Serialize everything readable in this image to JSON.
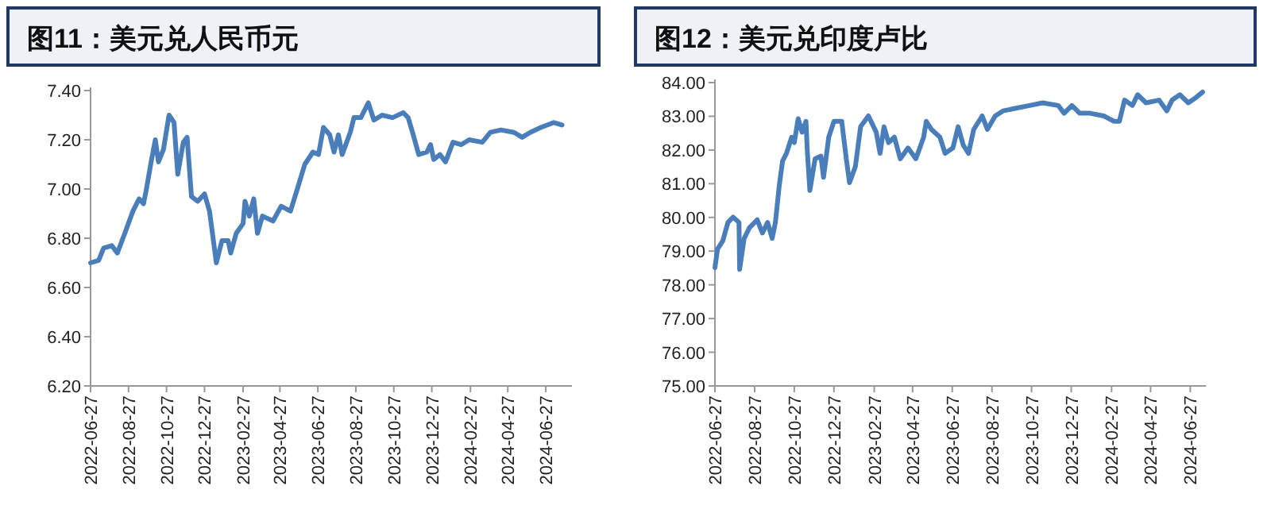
{
  "chart_data": [
    {
      "type": "line",
      "title": "图11：美元兑人民币元",
      "x": [
        "2022-06-27",
        "2022-07-10",
        "2022-07-18",
        "2022-07-31",
        "2022-08-09",
        "2022-08-21",
        "2022-09-03",
        "2022-09-13",
        "2022-09-20",
        "2022-09-24",
        "2022-10-03",
        "2022-10-09",
        "2022-10-14",
        "2022-10-22",
        "2022-10-31",
        "2022-11-08",
        "2022-11-14",
        "2022-11-23",
        "2022-11-29",
        "2022-12-06",
        "2022-12-16",
        "2022-12-27",
        "2023-01-04",
        "2023-01-15",
        "2023-01-24",
        "2023-02-03",
        "2023-02-07",
        "2023-02-16",
        "2023-02-27",
        "2023-03-02",
        "2023-03-09",
        "2023-03-16",
        "2023-03-22",
        "2023-03-30",
        "2023-04-16",
        "2023-04-29",
        "2023-05-14",
        "2023-05-25",
        "2023-06-06",
        "2023-06-19",
        "2023-06-28",
        "2023-07-06",
        "2023-07-16",
        "2023-07-23",
        "2023-07-30",
        "2023-08-05",
        "2023-08-18",
        "2023-08-24",
        "2023-09-04",
        "2023-09-16",
        "2023-09-25",
        "2023-10-08",
        "2023-10-25",
        "2023-11-11",
        "2023-11-19",
        "2023-11-26",
        "2023-12-06",
        "2023-12-19",
        "2023-12-25",
        "2023-12-30",
        "2024-01-09",
        "2024-01-18",
        "2024-01-30",
        "2024-02-12",
        "2024-02-25",
        "2024-03-17",
        "2024-03-30",
        "2024-04-16",
        "2024-05-07",
        "2024-05-20",
        "2024-06-02",
        "2024-06-19",
        "2024-07-10",
        "2024-07-23"
      ],
      "series": [
        {
          "color": "#4a7ebb",
          "values": [
            6.7,
            6.71,
            6.76,
            6.77,
            6.74,
            6.82,
            6.91,
            6.96,
            6.94,
            6.99,
            7.12,
            7.2,
            7.11,
            7.16,
            7.3,
            7.27,
            7.06,
            7.19,
            7.21,
            6.97,
            6.95,
            6.98,
            6.91,
            6.7,
            6.79,
            6.79,
            6.74,
            6.82,
            6.86,
            6.95,
            6.89,
            6.96,
            6.82,
            6.89,
            6.87,
            6.93,
            6.91,
            7.0,
            7.1,
            7.15,
            7.14,
            7.25,
            7.22,
            7.15,
            7.22,
            7.14,
            7.23,
            7.29,
            7.29,
            7.35,
            7.28,
            7.3,
            7.29,
            7.31,
            7.29,
            7.23,
            7.14,
            7.15,
            7.18,
            7.12,
            7.14,
            7.11,
            7.19,
            7.18,
            7.2,
            7.19,
            7.23,
            7.24,
            7.23,
            7.21,
            7.23,
            7.25,
            7.27,
            7.26
          ]
        }
      ],
      "xlim": [
        "2022-06-27",
        "2024-08-08"
      ],
      "xticks": [
        "2022-06-27",
        "2022-08-27",
        "2022-10-27",
        "2022-12-27",
        "2023-02-27",
        "2023-04-27",
        "2023-06-27",
        "2023-08-27",
        "2023-10-27",
        "2023-12-27",
        "2024-02-27",
        "2024-04-27",
        "2024-06-27"
      ],
      "ylim": [
        6.2,
        7.4
      ],
      "yticks": [
        {
          "value": 6.2,
          "label": "6.20"
        },
        {
          "value": 6.4,
          "label": "6.40"
        },
        {
          "value": 6.6,
          "label": "6.60"
        },
        {
          "value": 6.8,
          "label": "6.80"
        },
        {
          "value": 7.0,
          "label": "7.00"
        },
        {
          "value": 7.2,
          "label": "7.20"
        },
        {
          "value": 7.4,
          "label": "7.40"
        }
      ],
      "grid": false,
      "marker": "none",
      "line_style": "solid"
    },
    {
      "type": "line",
      "title": "图12：美元兑印度卢比",
      "x": [
        "2022-06-27",
        "2022-07-01",
        "2022-07-09",
        "2022-07-17",
        "2022-07-25",
        "2022-08-03",
        "2022-08-04",
        "2022-08-11",
        "2022-08-19",
        "2022-08-31",
        "2022-09-08",
        "2022-09-16",
        "2022-09-23",
        "2022-09-28",
        "2022-10-04",
        "2022-10-09",
        "2022-10-15",
        "2022-10-23",
        "2022-10-27",
        "2022-11-02",
        "2022-11-08",
        "2022-11-14",
        "2022-11-16",
        "2022-11-20",
        "2022-11-28",
        "2022-12-07",
        "2022-12-11",
        "2022-12-19",
        "2022-12-27",
        "2023-01-08",
        "2023-01-15",
        "2023-01-20",
        "2023-01-29",
        "2023-02-06",
        "2023-02-18",
        "2023-03-02",
        "2023-03-08",
        "2023-03-14",
        "2023-03-21",
        "2023-03-30",
        "2023-04-08",
        "2023-04-20",
        "2023-05-02",
        "2023-05-14",
        "2023-05-18",
        "2023-05-26",
        "2023-06-08",
        "2023-06-16",
        "2023-06-28",
        "2023-07-06",
        "2023-07-14",
        "2023-07-22",
        "2023-07-30",
        "2023-08-12",
        "2023-08-20",
        "2023-09-01",
        "2023-09-13",
        "2023-10-03",
        "2023-10-24",
        "2023-11-13",
        "2023-12-07",
        "2023-12-16",
        "2023-12-28",
        "2024-01-09",
        "2024-01-25",
        "2024-02-15",
        "2024-03-02",
        "2024-03-10",
        "2024-03-18",
        "2024-03-30",
        "2024-04-07",
        "2024-04-20",
        "2024-05-10",
        "2024-05-22",
        "2024-05-30",
        "2024-06-11",
        "2024-06-24",
        "2024-07-06",
        "2024-07-16"
      ],
      "series": [
        {
          "color": "#4a7ebb",
          "values": [
            78.51,
            79.06,
            79.3,
            79.85,
            80.01,
            79.85,
            78.46,
            79.38,
            79.69,
            79.93,
            79.54,
            79.85,
            79.38,
            79.85,
            80.96,
            81.67,
            81.9,
            82.38,
            82.22,
            82.93,
            82.53,
            82.85,
            81.98,
            80.8,
            81.74,
            81.82,
            81.19,
            82.38,
            82.85,
            82.85,
            81.74,
            81.03,
            81.51,
            82.69,
            83.01,
            82.53,
            81.9,
            82.69,
            82.22,
            82.38,
            81.74,
            82.06,
            81.74,
            82.38,
            82.85,
            82.61,
            82.38,
            81.9,
            82.06,
            82.69,
            82.14,
            81.9,
            82.61,
            83.01,
            82.61,
            83.01,
            83.16,
            83.24,
            83.32,
            83.4,
            83.32,
            83.09,
            83.32,
            83.09,
            83.09,
            83.01,
            82.85,
            82.85,
            83.48,
            83.32,
            83.64,
            83.4,
            83.48,
            83.16,
            83.48,
            83.64,
            83.4,
            83.56,
            83.72
          ]
        }
      ],
      "xlim": [
        "2022-06-27",
        "2024-07-21"
      ],
      "xticks": [
        "2022-06-27",
        "2022-08-27",
        "2022-10-27",
        "2022-12-27",
        "2023-02-27",
        "2023-04-27",
        "2023-06-27",
        "2023-08-27",
        "2023-10-27",
        "2023-12-27",
        "2024-02-27",
        "2024-04-27",
        "2024-06-27"
      ],
      "ylim": [
        75,
        84
      ],
      "yticks": [
        {
          "value": 75,
          "label": "75.00"
        },
        {
          "value": 76,
          "label": "76.00"
        },
        {
          "value": 77,
          "label": "77.00"
        },
        {
          "value": 78,
          "label": "78.00"
        },
        {
          "value": 79,
          "label": "79.00"
        },
        {
          "value": 80,
          "label": "80.00"
        },
        {
          "value": 81,
          "label": "81.00"
        },
        {
          "value": 82,
          "label": "82.00"
        },
        {
          "value": 83,
          "label": "83.00"
        },
        {
          "value": 84,
          "label": "84.00"
        }
      ],
      "grid": false,
      "marker": "none",
      "line_style": "solid"
    }
  ]
}
